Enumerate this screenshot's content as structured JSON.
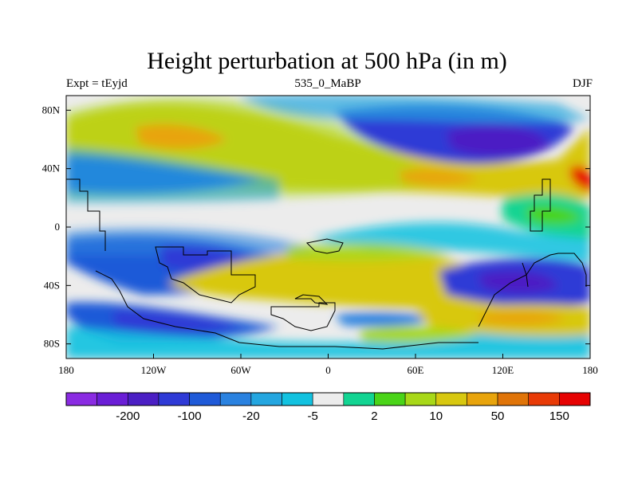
{
  "chart_data": {
    "type": "heatmap",
    "title": "Height perturbation at 500 hPa (in m)",
    "subtitle_left": "Expt = tEyjd",
    "subtitle_center": "535_0_MaBP",
    "subtitle_right": "DJF",
    "x_ticks": [
      "180",
      "120W",
      "60W",
      "0",
      "60E",
      "120E",
      "180"
    ],
    "y_ticks": [
      "80N",
      "40N",
      "0",
      "40S",
      "80S"
    ],
    "colorbar": {
      "colors": [
        "#8a2be2",
        "#6a1ed6",
        "#4b1fc4",
        "#2f3ad6",
        "#1f5ad8",
        "#2a82e0",
        "#24a6e0",
        "#12c2e0",
        "#ececec",
        "#12d492",
        "#4ad418",
        "#a8d818",
        "#d8c810",
        "#e8a40c",
        "#e07408",
        "#e83a06",
        "#e60202"
      ],
      "labels": [
        "-200",
        "-100",
        "-20",
        "-5",
        "2",
        "10",
        "50",
        "150"
      ]
    }
  }
}
